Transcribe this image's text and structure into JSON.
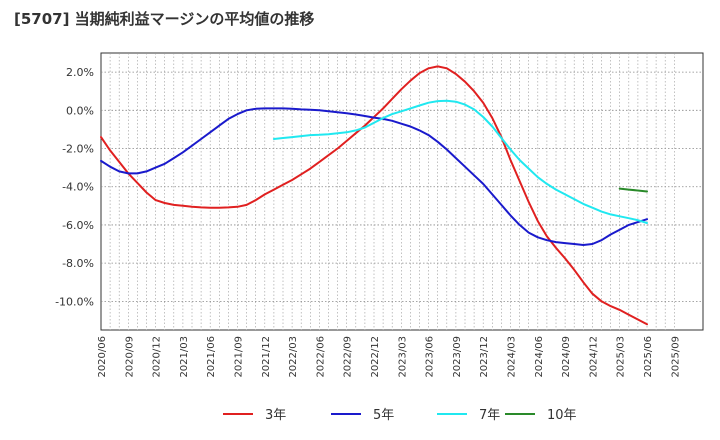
{
  "chart_data": {
    "type": "line",
    "title": "[5707]  当期純利益マージンの平均値の推移",
    "xlabel": "",
    "ylabel": "",
    "ylim": [
      -11.5,
      3.0
    ],
    "yticks": [
      2,
      0,
      -2,
      -4,
      -6,
      -8,
      -10
    ],
    "ytick_labels": [
      "2.0%",
      "0.0%",
      "-2.0%",
      "-4.0%",
      "-6.0%",
      "-8.0%",
      "-10.0%"
    ],
    "x_start": "2020/06",
    "xticks": [
      "2020/06",
      "2020/09",
      "2020/12",
      "2021/03",
      "2021/06",
      "2021/09",
      "2021/12",
      "2022/03",
      "2022/06",
      "2022/09",
      "2022/12",
      "2023/03",
      "2023/06",
      "2023/09",
      "2023/12",
      "2024/03",
      "2024/06",
      "2024/09",
      "2024/12",
      "2025/03",
      "2025/06",
      "2025/09"
    ],
    "grid": true,
    "legend_position": "bottom",
    "series": [
      {
        "name": "3年",
        "color": "#e02020",
        "x": [
          "2020/06",
          "2020/07",
          "2020/08",
          "2020/09",
          "2020/10",
          "2020/11",
          "2020/12",
          "2021/01",
          "2021/02",
          "2021/03",
          "2021/04",
          "2021/05",
          "2021/06",
          "2021/07",
          "2021/08",
          "2021/09",
          "2021/10",
          "2021/11",
          "2021/12",
          "2022/01",
          "2022/02",
          "2022/03",
          "2022/04",
          "2022/05",
          "2022/06",
          "2022/07",
          "2022/08",
          "2022/09",
          "2022/10",
          "2022/11",
          "2022/12",
          "2023/01",
          "2023/02",
          "2023/03",
          "2023/04",
          "2023/05",
          "2023/06",
          "2023/07",
          "2023/08",
          "2023/09",
          "2023/10",
          "2023/11",
          "2023/12",
          "2024/01",
          "2024/02",
          "2024/03",
          "2024/04",
          "2024/05",
          "2024/06",
          "2024/07",
          "2024/08",
          "2024/09",
          "2024/10",
          "2024/11",
          "2024/12",
          "2025/01",
          "2025/02",
          "2025/03",
          "2025/04",
          "2025/05",
          "2025/06"
        ],
        "values": [
          -1.4,
          -2.1,
          -2.7,
          -3.3,
          -3.8,
          -4.3,
          -4.7,
          -4.85,
          -4.95,
          -5.0,
          -5.05,
          -5.08,
          -5.1,
          -5.1,
          -5.08,
          -5.05,
          -4.95,
          -4.7,
          -4.4,
          -4.15,
          -3.9,
          -3.65,
          -3.35,
          -3.05,
          -2.7,
          -2.35,
          -2.0,
          -1.6,
          -1.2,
          -0.8,
          -0.35,
          0.1,
          0.6,
          1.1,
          1.55,
          1.95,
          2.2,
          2.3,
          2.2,
          1.9,
          1.5,
          1.0,
          0.4,
          -0.4,
          -1.4,
          -2.6,
          -3.7,
          -4.8,
          -5.8,
          -6.6,
          -7.2,
          -7.75,
          -8.35,
          -9.0,
          -9.6,
          -10.0,
          -10.25,
          -10.45,
          -10.7,
          -10.95,
          -11.2
        ]
      },
      {
        "name": "5年",
        "color": "#1a1acc",
        "x": [
          "2020/06",
          "2020/07",
          "2020/08",
          "2020/09",
          "2020/10",
          "2020/11",
          "2020/12",
          "2021/01",
          "2021/02",
          "2021/03",
          "2021/04",
          "2021/05",
          "2021/06",
          "2021/07",
          "2021/08",
          "2021/09",
          "2021/10",
          "2021/11",
          "2021/12",
          "2022/01",
          "2022/02",
          "2022/03",
          "2022/04",
          "2022/05",
          "2022/06",
          "2022/07",
          "2022/08",
          "2022/09",
          "2022/10",
          "2022/11",
          "2022/12",
          "2023/01",
          "2023/02",
          "2023/03",
          "2023/04",
          "2023/05",
          "2023/06",
          "2023/07",
          "2023/08",
          "2023/09",
          "2023/10",
          "2023/11",
          "2023/12",
          "2024/01",
          "2024/02",
          "2024/03",
          "2024/04",
          "2024/05",
          "2024/06",
          "2024/07",
          "2024/08",
          "2024/09",
          "2024/10",
          "2024/11",
          "2024/12",
          "2025/01",
          "2025/02",
          "2025/03",
          "2025/04",
          "2025/05",
          "2025/06"
        ],
        "values": [
          -2.65,
          -2.95,
          -3.2,
          -3.3,
          -3.3,
          -3.2,
          -3.0,
          -2.8,
          -2.5,
          -2.2,
          -1.85,
          -1.5,
          -1.15,
          -0.8,
          -0.45,
          -0.2,
          0.0,
          0.08,
          0.1,
          0.1,
          0.1,
          0.08,
          0.05,
          0.03,
          0.0,
          -0.05,
          -0.1,
          -0.15,
          -0.22,
          -0.3,
          -0.38,
          -0.45,
          -0.55,
          -0.7,
          -0.85,
          -1.05,
          -1.3,
          -1.65,
          -2.05,
          -2.5,
          -2.95,
          -3.4,
          -3.85,
          -4.4,
          -4.95,
          -5.5,
          -6.0,
          -6.4,
          -6.65,
          -6.8,
          -6.9,
          -6.95,
          -7.0,
          -7.05,
          -7.0,
          -6.8,
          -6.5,
          -6.25,
          -6.0,
          -5.85,
          -5.7
        ]
      },
      {
        "name": "7年",
        "color": "#20e8f0",
        "x": [
          "2022/01",
          "2022/02",
          "2022/03",
          "2022/04",
          "2022/05",
          "2022/06",
          "2022/07",
          "2022/08",
          "2022/09",
          "2022/10",
          "2022/11",
          "2022/12",
          "2023/01",
          "2023/02",
          "2023/03",
          "2023/04",
          "2023/05",
          "2023/06",
          "2023/07",
          "2023/08",
          "2023/09",
          "2023/10",
          "2023/11",
          "2023/12",
          "2024/01",
          "2024/02",
          "2024/03",
          "2024/04",
          "2024/05",
          "2024/06",
          "2024/07",
          "2024/08",
          "2024/09",
          "2024/10",
          "2024/11",
          "2024/12",
          "2025/01",
          "2025/02",
          "2025/03",
          "2025/04",
          "2025/05",
          "2025/06"
        ],
        "values": [
          -1.5,
          -1.45,
          -1.4,
          -1.35,
          -1.3,
          -1.28,
          -1.25,
          -1.2,
          -1.15,
          -1.05,
          -0.9,
          -0.65,
          -0.4,
          -0.2,
          -0.05,
          0.1,
          0.25,
          0.4,
          0.48,
          0.5,
          0.45,
          0.3,
          0.05,
          -0.35,
          -0.85,
          -1.45,
          -2.05,
          -2.6,
          -3.05,
          -3.5,
          -3.85,
          -4.15,
          -4.4,
          -4.65,
          -4.9,
          -5.1,
          -5.3,
          -5.45,
          -5.55,
          -5.65,
          -5.75,
          -5.9
        ]
      },
      {
        "name": "10年",
        "color": "#2a8a2a",
        "x": [
          "2025/03",
          "2025/04",
          "2025/05",
          "2025/06"
        ],
        "values": [
          -4.1,
          -4.15,
          -4.2,
          -4.25
        ]
      }
    ]
  }
}
